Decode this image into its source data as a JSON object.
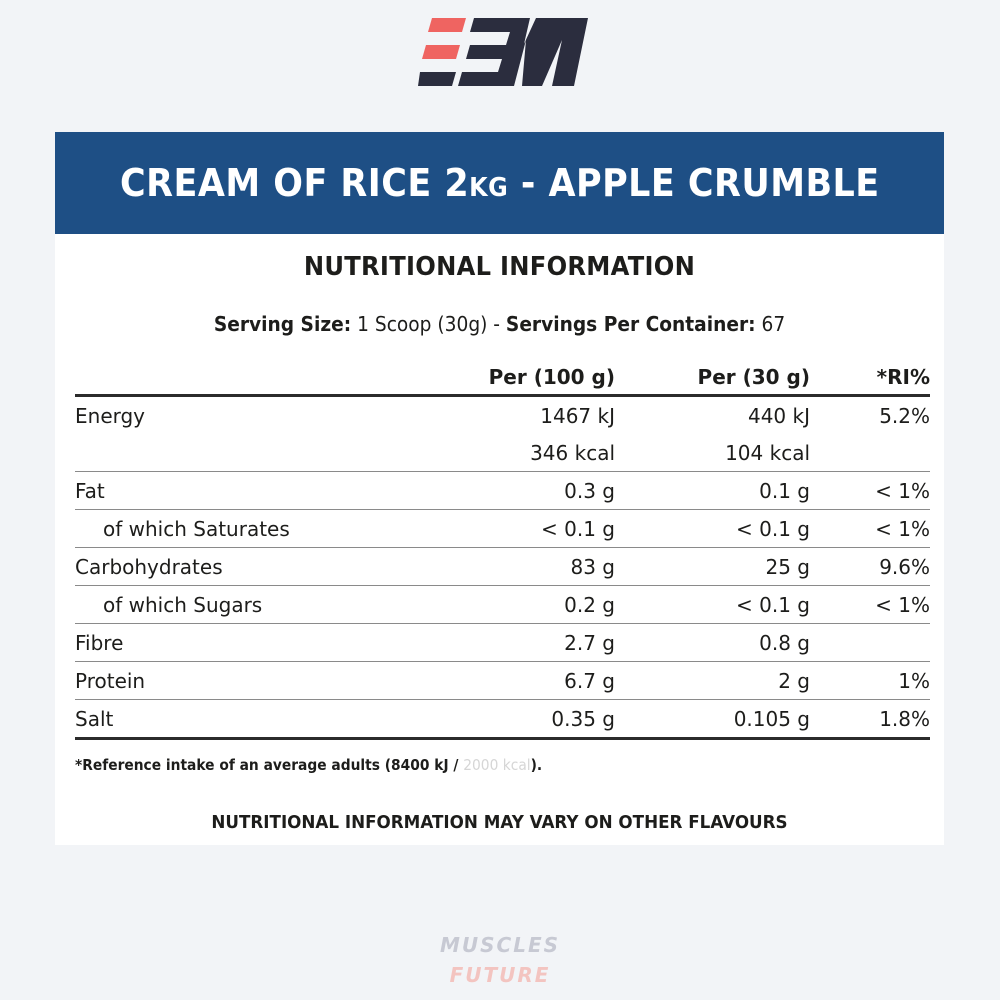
{
  "logo": {
    "name": "muscles-future-logo",
    "colors": {
      "accent": "#ef6461",
      "dark": "#2b2d3e"
    }
  },
  "banner": {
    "title_main": "CREAM OF RICE 2",
    "title_unit": "KG",
    "title_rest": " - APPLE CRUMBLE",
    "color": "#1e4f85"
  },
  "heading": "NUTRITIONAL INFORMATION",
  "serving": {
    "size_label": "Serving Size:",
    "size_value": " 1 Scoop (30g) - ",
    "servings_label": "Servings Per Container:",
    "servings_value": " 67"
  },
  "table": {
    "headers": [
      "",
      "Per (100 g)",
      "Per (30 g)",
      "*RI%"
    ],
    "rows": [
      {
        "name": "Energy",
        "per100": "1467 kJ",
        "per30": "440 kJ",
        "ri": "5.2%"
      },
      {
        "name": "",
        "per100": "346 kcal",
        "per30": "104 kcal",
        "ri": ""
      },
      {
        "name": "Fat",
        "per100": "0.3 g",
        "per30": "0.1 g",
        "ri": "< 1%"
      },
      {
        "name": "of which Saturates",
        "per100": "< 0.1 g",
        "per30": "< 0.1 g",
        "ri": "< 1%"
      },
      {
        "name": "Carbohydrates",
        "per100": "83 g",
        "per30": "25 g",
        "ri": "9.6%"
      },
      {
        "name": "of which Sugars",
        "per100": "0.2 g",
        "per30": "< 0.1 g",
        "ri": "< 1%"
      },
      {
        "name": "Fibre",
        "per100": "2.7 g",
        "per30": "0.8 g",
        "ri": ""
      },
      {
        "name": "Protein",
        "per100": "6.7 g",
        "per30": "2 g",
        "ri": "1%"
      },
      {
        "name": "Salt",
        "per100": "0.35 g",
        "per30": "0.105 g",
        "ri": "1.8%"
      }
    ]
  },
  "footnote": {
    "text": "*Reference intake of an average adults (8400 kJ / ",
    "faded": "2000 kcal",
    "end": ")."
  },
  "disclaimer": "NUTRITIONAL INFORMATION MAY VARY ON OTHER FLAVOURS",
  "brand": {
    "line1": "MUSCLES",
    "line2": "FUTURE"
  }
}
